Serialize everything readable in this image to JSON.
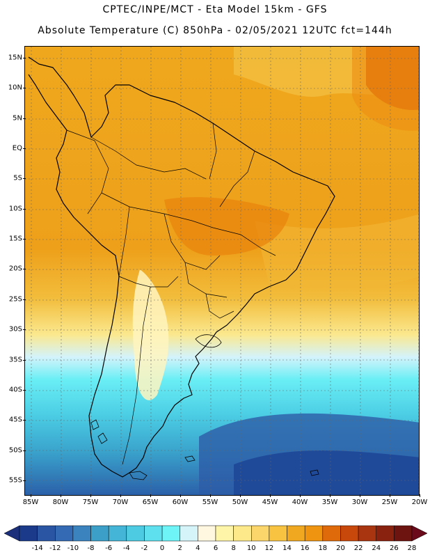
{
  "header": {
    "line1": "CPTEC/INPE/MCT -  Eta Model 15km - GFS",
    "line2": "Absolute Temperature (C) 850hPa - 02/05/2021 12UTC fct=144h"
  },
  "map": {
    "region": "South America",
    "lat_labels": [
      "15N",
      "10N",
      "5N",
      "EQ",
      "5S",
      "10S",
      "15S",
      "20S",
      "25S",
      "30S",
      "35S",
      "40S",
      "45S",
      "50S",
      "55S"
    ],
    "lon_labels": [
      "85W",
      "80W",
      "75W",
      "70W",
      "65W",
      "60W",
      "55W",
      "50W",
      "45W",
      "40W",
      "35W",
      "30W",
      "25W",
      "20W"
    ]
  },
  "colorbar": {
    "labels": [
      "-14",
      "-12",
      "-10",
      "-8",
      "-6",
      "-4",
      "-2",
      "0",
      "2",
      "4",
      "6",
      "8",
      "10",
      "12",
      "14",
      "16",
      "18",
      "20",
      "22",
      "24",
      "26",
      "28"
    ],
    "colors": [
      "#1b3a8a",
      "#2a55a3",
      "#346ab3",
      "#3b83bf",
      "#3b9fc8",
      "#44b5d6",
      "#4ccbe3",
      "#5ee0ee",
      "#6ef3f7",
      "#d5f4fa",
      "#fff7e0",
      "#fff5a8",
      "#fde98a",
      "#fbd66a",
      "#f7c340",
      "#f0a820",
      "#ee9410",
      "#de6a0a",
      "#c8480b",
      "#a83410",
      "#8a2210",
      "#6e1410"
    ]
  },
  "colors": {
    "continent_orange": "#ee9a14",
    "deep_ocean_blue": "#1f4a9a",
    "coastline": "#000000"
  }
}
